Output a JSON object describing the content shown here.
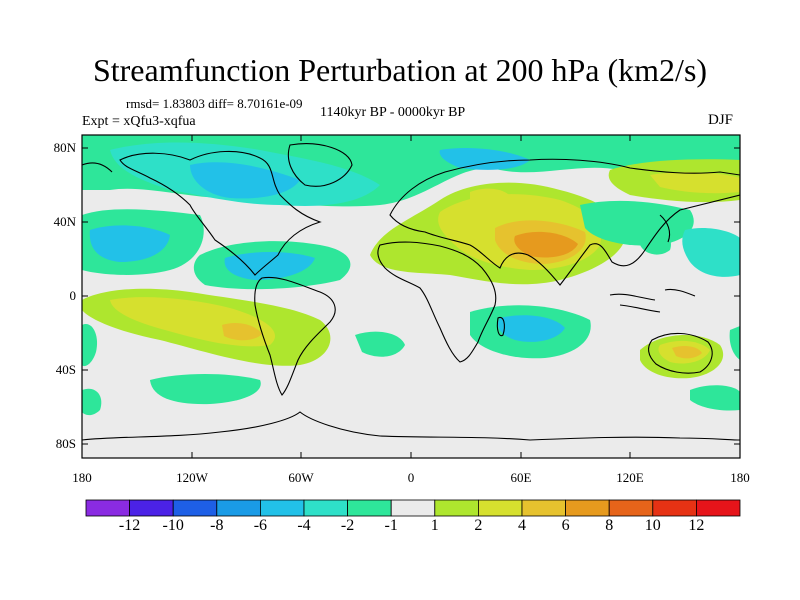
{
  "title": "Streamfunction Perturbation at 200 hPa (km2/s)",
  "stats_line": "rmsd= 1.83803 diff= 8.70161e-09",
  "period": "1140kyr BP - 0000kyr BP",
  "experiment": "Expt = xQfu3-xqfua",
  "season": "DJF",
  "lat_labels": [
    "80N",
    "40N",
    "0",
    "40S",
    "80S"
  ],
  "lon_labels": [
    "180",
    "120W",
    "60W",
    "0",
    "60E",
    "120E",
    "180"
  ],
  "colorbar": {
    "labels": [
      "-12",
      "-10",
      "-8",
      "-6",
      "-4",
      "-2",
      "-1",
      "1",
      "2",
      "4",
      "6",
      "8",
      "10",
      "12"
    ],
    "colors": [
      "#8a2be2",
      "#4b22e6",
      "#1e5fe6",
      "#1a9be6",
      "#22c1e8",
      "#2ee0c8",
      "#2ee69a",
      "#ebebeb",
      "#aee62e",
      "#d6e02e",
      "#e6c22e",
      "#e69a1e",
      "#e6641a",
      "#e63214",
      "#e6141a"
    ]
  }
}
